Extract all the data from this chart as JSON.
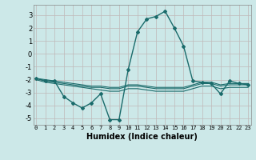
{
  "title": "",
  "xlabel": "Humidex (Indice chaleur)",
  "ylabel": "",
  "bg_color": "#cce8e8",
  "grid_color": "#c0b8b8",
  "line_color": "#1a6b6b",
  "x_ticks": [
    0,
    1,
    2,
    3,
    4,
    5,
    6,
    7,
    8,
    9,
    10,
    11,
    12,
    13,
    14,
    15,
    16,
    17,
    18,
    19,
    20,
    21,
    22,
    23
  ],
  "ylim": [
    -5.5,
    3.8
  ],
  "xlim": [
    -0.3,
    23.3
  ],
  "series": [
    {
      "x": [
        0,
        1,
        2,
        3,
        4,
        5,
        6,
        7,
        8,
        9,
        10,
        11,
        12,
        13,
        14,
        15,
        16,
        17,
        18,
        19,
        20,
        21,
        22,
        23
      ],
      "y": [
        -1.9,
        -2.1,
        -2.1,
        -3.3,
        -3.8,
        -4.2,
        -3.8,
        -3.1,
        -5.1,
        -5.1,
        -1.2,
        1.7,
        2.7,
        2.9,
        3.3,
        2.0,
        0.6,
        -2.1,
        -2.2,
        -2.3,
        -3.1,
        -2.1,
        -2.3,
        -2.4
      ],
      "marker": "D",
      "markersize": 2.0,
      "linewidth": 1.0
    },
    {
      "x": [
        0,
        1,
        2,
        3,
        4,
        5,
        6,
        7,
        8,
        9,
        10,
        11,
        12,
        13,
        14,
        15,
        16,
        17,
        18,
        19,
        20,
        21,
        22,
        23
      ],
      "y": [
        -1.9,
        -2.0,
        -2.1,
        -2.2,
        -2.3,
        -2.4,
        -2.5,
        -2.5,
        -2.6,
        -2.6,
        -2.4,
        -2.4,
        -2.5,
        -2.6,
        -2.6,
        -2.6,
        -2.6,
        -2.4,
        -2.2,
        -2.2,
        -2.4,
        -2.3,
        -2.3,
        -2.3
      ],
      "marker": null,
      "linewidth": 0.8
    },
    {
      "x": [
        0,
        1,
        2,
        3,
        4,
        5,
        6,
        7,
        8,
        9,
        10,
        11,
        12,
        13,
        14,
        15,
        16,
        17,
        18,
        19,
        20,
        21,
        22,
        23
      ],
      "y": [
        -1.9,
        -2.1,
        -2.2,
        -2.3,
        -2.4,
        -2.5,
        -2.6,
        -2.6,
        -2.7,
        -2.7,
        -2.5,
        -2.5,
        -2.6,
        -2.7,
        -2.7,
        -2.7,
        -2.7,
        -2.5,
        -2.3,
        -2.3,
        -2.5,
        -2.4,
        -2.4,
        -2.4
      ],
      "marker": null,
      "linewidth": 0.8
    },
    {
      "x": [
        0,
        1,
        2,
        3,
        4,
        5,
        6,
        7,
        8,
        9,
        10,
        11,
        12,
        13,
        14,
        15,
        16,
        17,
        18,
        19,
        20,
        21,
        22,
        23
      ],
      "y": [
        -2.0,
        -2.2,
        -2.3,
        -2.4,
        -2.5,
        -2.6,
        -2.7,
        -2.8,
        -2.9,
        -2.9,
        -2.7,
        -2.7,
        -2.8,
        -2.9,
        -2.9,
        -2.9,
        -2.9,
        -2.7,
        -2.5,
        -2.5,
        -2.7,
        -2.6,
        -2.6,
        -2.6
      ],
      "marker": null,
      "linewidth": 0.8
    }
  ],
  "yticks": [
    -5,
    -4,
    -3,
    -2,
    -1,
    0,
    1,
    2,
    3
  ],
  "ytick_labels": [
    "-5",
    "-4",
    "-3",
    "-2",
    "-1",
    "0",
    "1",
    "2",
    "3"
  ]
}
